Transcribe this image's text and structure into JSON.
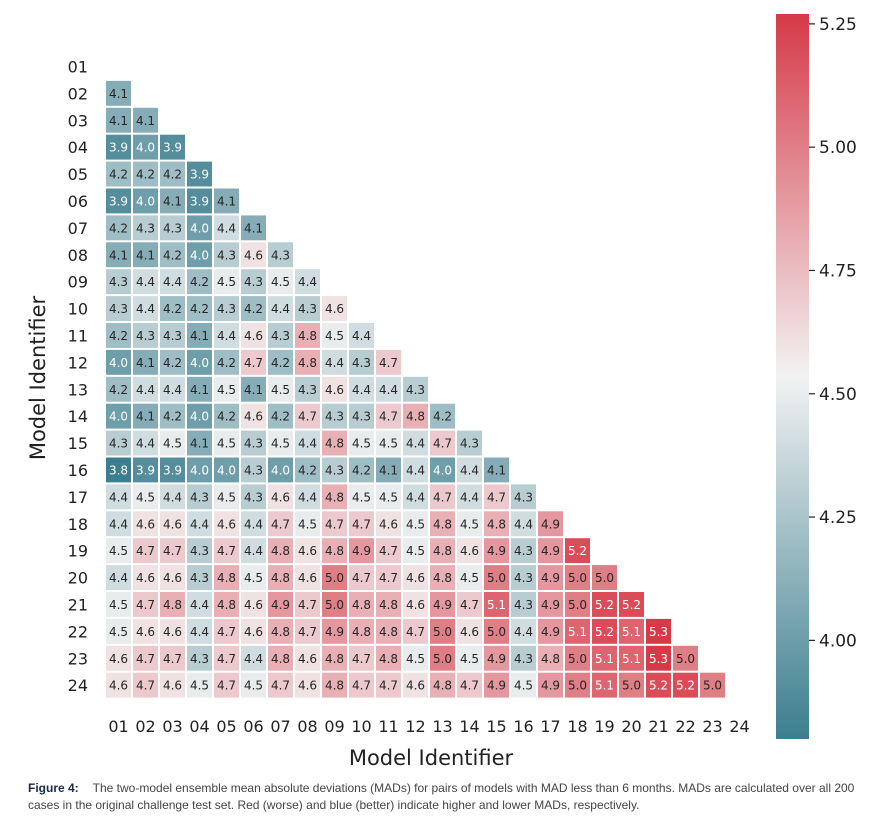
{
  "chart_data": {
    "type": "heatmap",
    "xlabel": "Model Identifier",
    "ylabel": "Model Identifier",
    "x_labels": [
      "01",
      "02",
      "03",
      "04",
      "05",
      "06",
      "07",
      "08",
      "09",
      "10",
      "11",
      "12",
      "13",
      "14",
      "15",
      "16",
      "17",
      "18",
      "19",
      "20",
      "21",
      "22",
      "23",
      "24"
    ],
    "y_labels": [
      "01",
      "02",
      "03",
      "04",
      "05",
      "06",
      "07",
      "08",
      "09",
      "10",
      "11",
      "12",
      "13",
      "14",
      "15",
      "16",
      "17",
      "18",
      "19",
      "20",
      "21",
      "22",
      "23",
      "24"
    ],
    "lower_triangle": true,
    "values": [
      [],
      [
        4.1
      ],
      [
        4.1,
        4.1
      ],
      [
        3.9,
        4.0,
        3.9
      ],
      [
        4.2,
        4.2,
        4.2,
        3.9
      ],
      [
        3.9,
        4.0,
        4.1,
        3.9,
        4.1
      ],
      [
        4.2,
        4.3,
        4.3,
        4.0,
        4.4,
        4.1
      ],
      [
        4.1,
        4.1,
        4.2,
        4.0,
        4.3,
        4.6,
        4.3
      ],
      [
        4.3,
        4.4,
        4.4,
        4.2,
        4.5,
        4.3,
        4.5,
        4.4
      ],
      [
        4.3,
        4.4,
        4.2,
        4.2,
        4.3,
        4.2,
        4.4,
        4.3,
        4.6
      ],
      [
        4.2,
        4.3,
        4.3,
        4.1,
        4.4,
        4.6,
        4.3,
        4.8,
        4.5,
        4.4
      ],
      [
        4.0,
        4.1,
        4.2,
        4.0,
        4.2,
        4.7,
        4.2,
        4.8,
        4.4,
        4.3,
        4.7
      ],
      [
        4.2,
        4.4,
        4.4,
        4.1,
        4.5,
        4.1,
        4.5,
        4.3,
        4.6,
        4.4,
        4.4,
        4.3
      ],
      [
        4.0,
        4.1,
        4.2,
        4.0,
        4.2,
        4.6,
        4.2,
        4.7,
        4.3,
        4.3,
        4.7,
        4.8,
        4.2
      ],
      [
        4.3,
        4.4,
        4.5,
        4.1,
        4.5,
        4.3,
        4.5,
        4.4,
        4.8,
        4.5,
        4.5,
        4.4,
        4.7,
        4.3
      ],
      [
        3.8,
        3.9,
        3.9,
        4.0,
        4.0,
        4.3,
        4.0,
        4.2,
        4.3,
        4.2,
        4.1,
        4.4,
        4.0,
        4.4,
        4.1
      ],
      [
        4.4,
        4.5,
        4.4,
        4.3,
        4.5,
        4.3,
        4.6,
        4.4,
        4.8,
        4.5,
        4.5,
        4.4,
        4.7,
        4.4,
        4.7,
        4.3
      ],
      [
        4.4,
        4.6,
        4.6,
        4.4,
        4.6,
        4.4,
        4.7,
        4.5,
        4.7,
        4.7,
        4.6,
        4.5,
        4.8,
        4.5,
        4.8,
        4.4,
        4.9
      ],
      [
        4.5,
        4.7,
        4.7,
        4.3,
        4.7,
        4.4,
        4.8,
        4.6,
        4.8,
        4.9,
        4.7,
        4.5,
        4.8,
        4.6,
        4.9,
        4.3,
        4.9,
        5.2
      ],
      [
        4.4,
        4.6,
        4.6,
        4.3,
        4.8,
        4.5,
        4.8,
        4.6,
        5.0,
        4.7,
        4.7,
        4.6,
        4.8,
        4.5,
        5.0,
        4.3,
        4.9,
        5.0,
        5.0
      ],
      [
        4.5,
        4.7,
        4.8,
        4.4,
        4.8,
        4.6,
        4.9,
        4.7,
        5.0,
        4.8,
        4.8,
        4.6,
        4.9,
        4.7,
        5.1,
        4.3,
        4.9,
        5.0,
        5.2,
        5.2
      ],
      [
        4.5,
        4.6,
        4.6,
        4.4,
        4.7,
        4.6,
        4.8,
        4.7,
        4.9,
        4.8,
        4.8,
        4.7,
        5.0,
        4.6,
        5.0,
        4.4,
        4.9,
        5.1,
        5.2,
        5.1,
        5.3
      ],
      [
        4.6,
        4.7,
        4.7,
        4.3,
        4.7,
        4.4,
        4.8,
        4.6,
        4.8,
        4.7,
        4.8,
        4.5,
        5.0,
        4.5,
        4.9,
        4.3,
        4.8,
        5.0,
        5.1,
        5.1,
        5.3,
        5.0
      ],
      [
        4.6,
        4.7,
        4.6,
        4.5,
        4.7,
        4.5,
        4.7,
        4.6,
        4.8,
        4.7,
        4.7,
        4.6,
        4.8,
        4.7,
        4.9,
        4.5,
        4.9,
        5.0,
        5.1,
        5.0,
        5.2,
        5.2,
        5.0
      ]
    ],
    "colorbar": {
      "min": 3.8,
      "max": 5.27,
      "center": 4.5,
      "ticks": [
        "4.00",
        "4.25",
        "4.50",
        "4.75",
        "5.00",
        "5.25"
      ],
      "tick_values": [
        4.0,
        4.25,
        4.5,
        4.75,
        5.0,
        5.25
      ]
    },
    "colormap": {
      "low": "#3b7e8f",
      "mid": "#f2f2f2",
      "high": "#d63a48"
    }
  },
  "caption": {
    "label": "Figure 4:",
    "text": "The two-model ensemble mean absolute deviations (MADs) for pairs of models with MAD less than 6 months. MADs are calculated over all 200 cases in the original challenge test set. Red (worse) and blue (better) indicate higher and lower MADs, respectively."
  }
}
